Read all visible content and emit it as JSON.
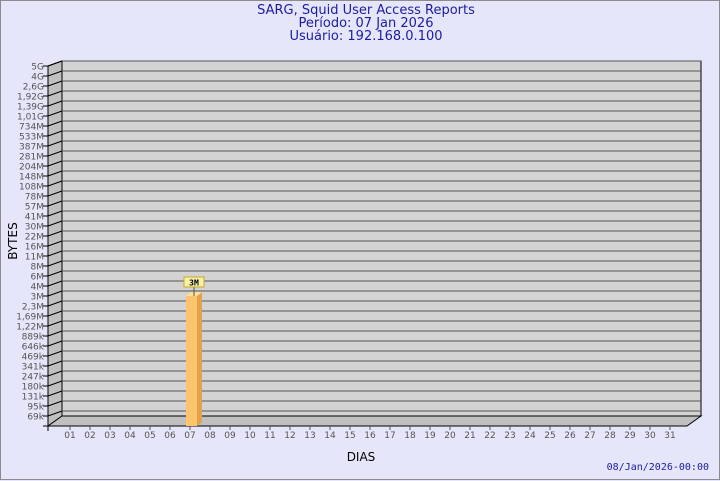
{
  "header": {
    "title": "SARG, Squid User Access Reports",
    "period": "Período: 07 Jan 2026",
    "user": "Usuário: 192.168.0.100"
  },
  "footer": {
    "generated": "08/Jan/2026-00:00"
  },
  "chart_data": {
    "type": "bar",
    "title": "SARG, Squid User Access Reports",
    "xlabel": "DIAS",
    "ylabel": "BYTES",
    "y_scale": "log",
    "grid": true,
    "y_ticks": [
      "5G",
      "4G",
      "2,6G",
      "1,92G",
      "1,39G",
      "1,01G",
      "734M",
      "533M",
      "387M",
      "281M",
      "204M",
      "148M",
      "108M",
      "78M",
      "57M",
      "41M",
      "30M",
      "22M",
      "16M",
      "11M",
      "8M",
      "6M",
      "4M",
      "3M",
      "2,3M",
      "1,69M",
      "1,22M",
      "889k",
      "646k",
      "469k",
      "341k",
      "247k",
      "180k",
      "131k",
      "95k",
      "69k"
    ],
    "categories": [
      "01",
      "02",
      "03",
      "04",
      "05",
      "06",
      "07",
      "08",
      "09",
      "10",
      "11",
      "12",
      "13",
      "14",
      "15",
      "16",
      "17",
      "18",
      "19",
      "20",
      "21",
      "22",
      "23",
      "24",
      "25",
      "26",
      "27",
      "28",
      "29",
      "30",
      "31"
    ],
    "bars": [
      {
        "category": "07",
        "value_bytes": 3000000,
        "label": "3M"
      }
    ],
    "colors": {
      "bar_front": "#fec46c",
      "bar_side": "#e0a44c",
      "bar_top": "#ffe09a",
      "plot_bg": "#d3d3d3",
      "wall": "#c0c0c0",
      "text": "#1c1ca0",
      "label_bg": "#f5f0a8"
    }
  }
}
